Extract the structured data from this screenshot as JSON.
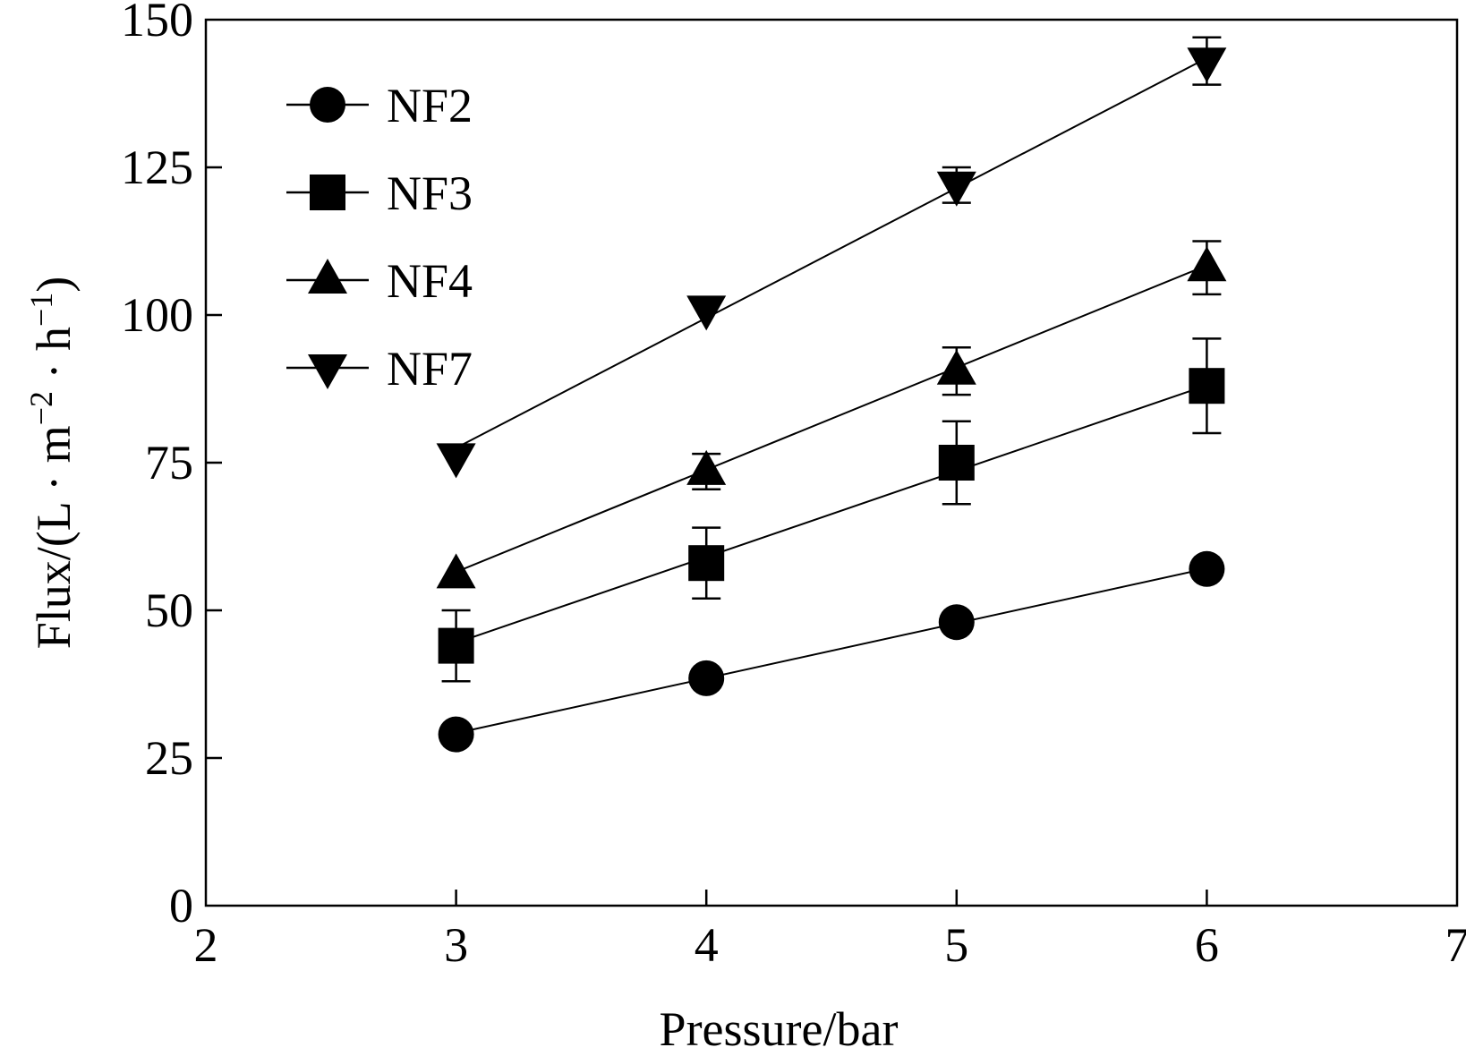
{
  "chart_data": {
    "type": "line",
    "title": "",
    "xlabel": "Pressure/bar",
    "ylabel_parts": {
      "prefix": "Flux/(L · m",
      "sup1": "−2",
      "mid": " · h",
      "sup2": "−1",
      "suffix": ")"
    },
    "xlim": [
      2,
      7
    ],
    "ylim": [
      0,
      150
    ],
    "xticks": [
      "2",
      "3",
      "4",
      "5",
      "6",
      "7"
    ],
    "xtick_values": [
      2,
      3,
      4,
      5,
      6,
      7
    ],
    "yticks": [
      "0",
      "25",
      "50",
      "75",
      "100",
      "125",
      "150"
    ],
    "ytick_values": [
      0,
      25,
      50,
      75,
      100,
      125,
      150
    ],
    "grid": false,
    "legend_position": "top-left",
    "x": [
      3,
      4,
      5,
      6
    ],
    "series": [
      {
        "name": "NF2",
        "marker": "circle",
        "values": [
          29,
          38.5,
          48,
          57
        ],
        "errors": [
          0,
          0,
          0,
          0
        ],
        "fit": [
          29.2,
          38.5,
          47.8,
          57.1
        ]
      },
      {
        "name": "NF3",
        "marker": "square",
        "values": [
          44,
          58,
          75,
          88
        ],
        "errors": [
          6,
          6,
          7,
          8
        ],
        "fit": [
          44.5,
          59.0,
          73.6,
          88.1
        ]
      },
      {
        "name": "NF4",
        "marker": "triangle-up",
        "values": [
          56,
          73.5,
          90.5,
          108
        ],
        "errors": [
          0,
          3,
          4,
          4.5
        ],
        "fit": [
          56.5,
          73.8,
          91.1,
          108.4
        ]
      },
      {
        "name": "NF7",
        "marker": "triangle-down",
        "values": [
          76,
          101,
          122,
          143
        ],
        "errors": [
          0,
          0,
          3,
          4
        ],
        "fit": [
          77.5,
          99.5,
          121.5,
          143.5
        ]
      }
    ],
    "colors": {
      "line": "#000000",
      "marker": "#000000"
    }
  }
}
